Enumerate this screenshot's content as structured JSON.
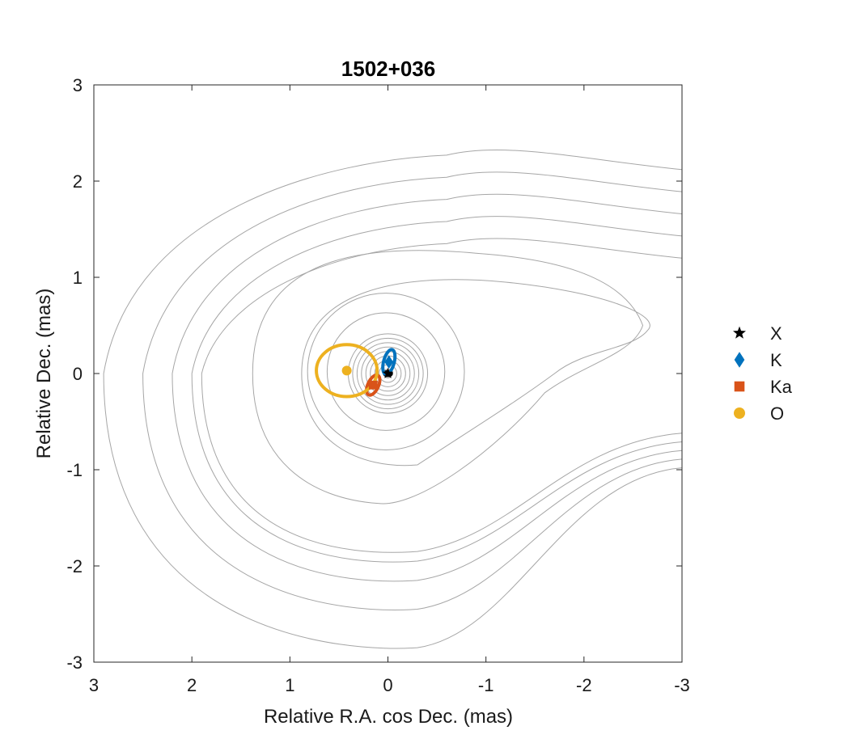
{
  "chart_data": {
    "type": "scatter",
    "title": "1502+036",
    "xlabel": "Relative R.A. cos Dec. (mas)",
    "ylabel": "Relative Dec. (mas)",
    "xlim": [
      3,
      -3
    ],
    "ylim": [
      -3,
      3
    ],
    "xticks": [
      "3",
      "2",
      "1",
      "0",
      "-1",
      "-2",
      "-3"
    ],
    "yticks": [
      "3",
      "2",
      "1",
      "0",
      "-1",
      "-2",
      "-3"
    ],
    "grid": false,
    "legend_position": "right",
    "contour_color": "#a6a6a6",
    "series": [
      {
        "name": "X",
        "marker": "star",
        "color": "#000000",
        "x": [
          0.0
        ],
        "y": [
          0.0
        ],
        "error_ellipse": {
          "a": 0.035,
          "b": 0.02,
          "angle_deg": 0
        }
      },
      {
        "name": "K",
        "marker": "diamond",
        "color": "#0072bd",
        "x": [
          -0.01
        ],
        "y": [
          0.12
        ],
        "error_ellipse": {
          "a": 0.13,
          "b": 0.055,
          "angle_deg": 75
        }
      },
      {
        "name": "Ka",
        "marker": "square",
        "color": "#d95319",
        "x": [
          0.15
        ],
        "y": [
          -0.12
        ],
        "error_ellipse": {
          "a": 0.11,
          "b": 0.055,
          "angle_deg": 65
        }
      },
      {
        "name": "O",
        "marker": "circle",
        "color": "#edb120",
        "x": [
          0.42
        ],
        "y": [
          0.03
        ],
        "error_ellipse": {
          "a": 0.31,
          "b": 0.27,
          "angle_deg": 0
        }
      }
    ]
  }
}
